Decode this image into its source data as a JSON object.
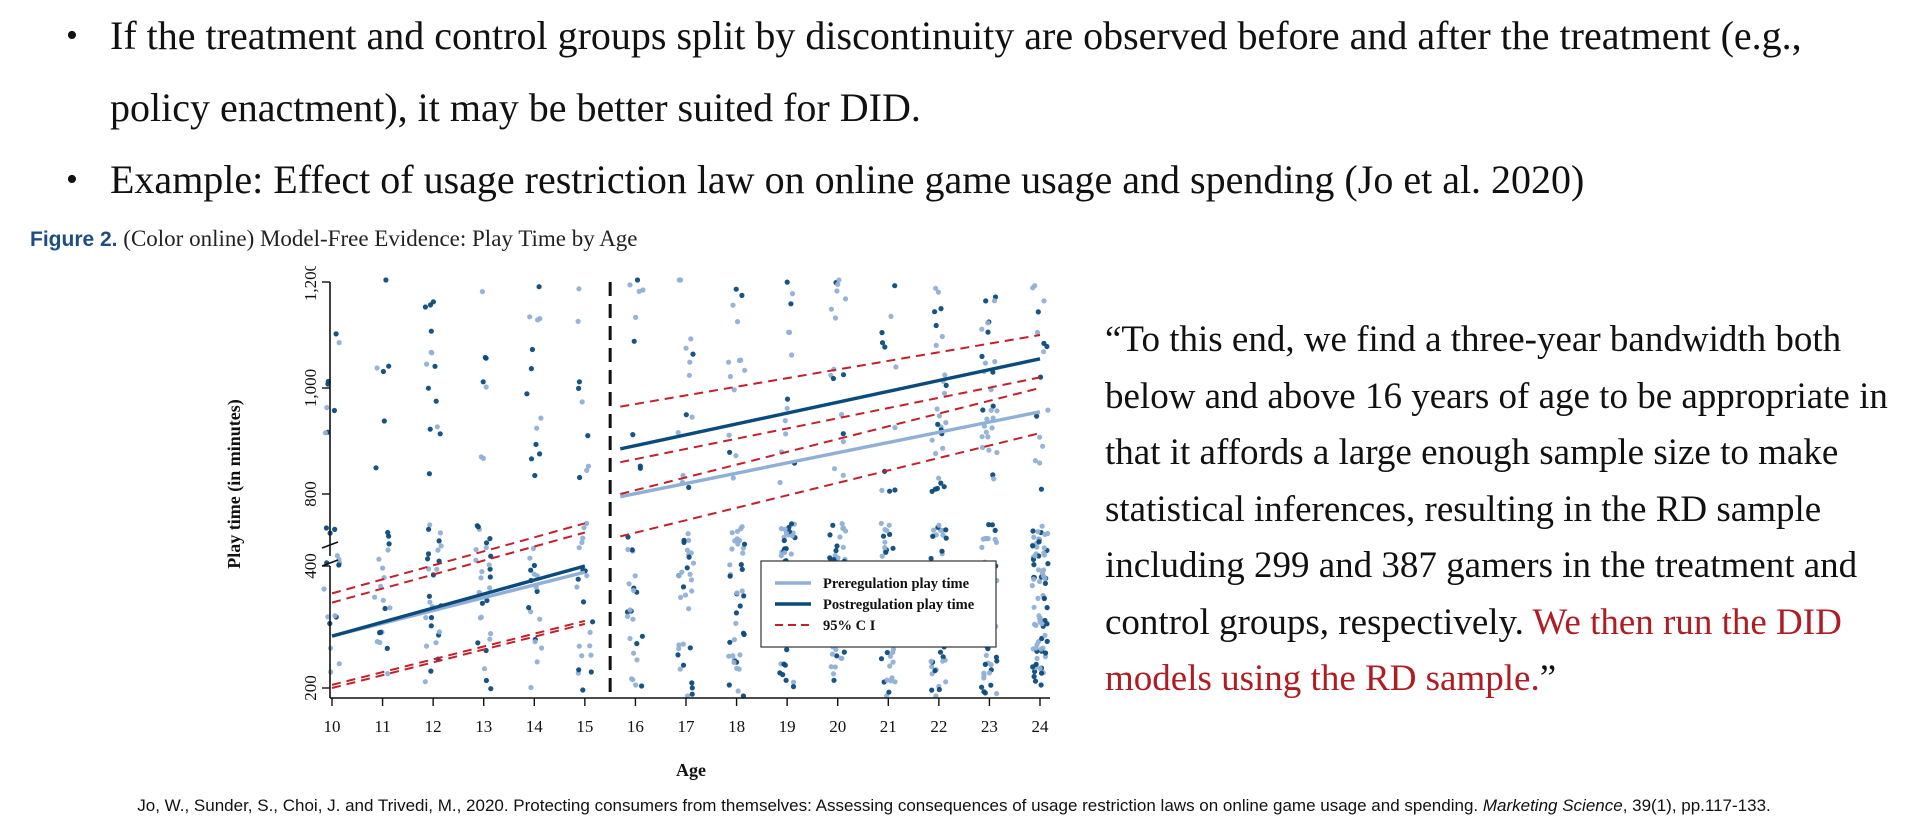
{
  "bullets": [
    "If the treatment and control groups split by discontinuity are observed before and after the treatment (e.g., policy enactment), it may be better suited for DID.",
    "Example: Effect of usage restriction law on online game usage and spending (Jo et al. 2020)"
  ],
  "figure": {
    "label": "Figure 2.",
    "caption": "(Color online) Model-Free Evidence: Play Time by Age"
  },
  "quote": {
    "text": "“To this end, we find a three-year bandwidth both below and above 16 years of age to be appropriate in that it affords a large enough sample size to make statistical inferences, resulting in the RD sample including 299 and 387 gamers in the treatment and control groups, respectively. ",
    "highlight": "We then run the DID models using the RD sample.",
    "closing": "”"
  },
  "citation": {
    "authors": "Jo, W., Sunder, S., Choi, J. and Trivedi, M., 2020. Protecting consumers from themselves: Assessing consequences of usage restriction laws on online game usage and spending. ",
    "journal": "Marketing Science",
    "details": ", 39(1), pp.117-133."
  },
  "colors": {
    "pre": "#8fb0d6",
    "post": "#0b4a7c",
    "ci": "#c4202b",
    "highlight": "#b01c23",
    "figure_label": "#1d4d86"
  },
  "chart_data": {
    "type": "scatter",
    "title": "Model-Free Evidence: Play Time by Age",
    "xlabel": "Age",
    "ylabel": "Play time (in minutes)",
    "categories": [
      10,
      11,
      12,
      13,
      14,
      15,
      16,
      17,
      18,
      19,
      20,
      21,
      22,
      23,
      24
    ],
    "y_ticks": [
      200,
      400,
      800,
      1000,
      1200
    ],
    "y_tick_labels": [
      "200",
      "400",
      "800",
      "1,000",
      "1,200"
    ],
    "axis_break": "between 400 and 800",
    "cutoff_age": 15.5,
    "legend": {
      "position": "bottom-right",
      "entries": [
        "Preregulation play time",
        "Postregulation play time",
        "95% C I"
      ]
    },
    "series": [
      {
        "name": "Preregulation play time",
        "style": "solid",
        "segments": [
          {
            "x": [
              10,
              15
            ],
            "y": [
              285,
              390
            ]
          },
          {
            "x": [
              15.7,
              24
            ],
            "y": [
              795,
              955
            ]
          }
        ]
      },
      {
        "name": "Postregulation play time",
        "style": "solid",
        "segments": [
          {
            "x": [
              10,
              15
            ],
            "y": [
              285,
              400
            ]
          },
          {
            "x": [
              15.7,
              24
            ],
            "y": [
              885,
              1055
            ]
          }
        ]
      },
      {
        "name": "95% C I",
        "style": "dashed",
        "segments": [
          {
            "x": [
              10,
              15
            ],
            "y": [
              355,
              470
            ]
          },
          {
            "x": [
              10,
              15
            ],
            "y": [
              340,
              455
            ]
          },
          {
            "x": [
              10,
              15
            ],
            "y": [
              205,
              310
            ]
          },
          {
            "x": [
              10,
              15
            ],
            "y": [
              200,
              305
            ]
          },
          {
            "x": [
              15.7,
              24
            ],
            "y": [
              965,
              1100
            ]
          },
          {
            "x": [
              15.7,
              24
            ],
            "y": [
              860,
              1020
            ]
          },
          {
            "x": [
              15.7,
              24
            ],
            "y": [
              800,
              1000
            ]
          },
          {
            "x": [
              15.7,
              24
            ],
            "y": [
              720,
              915
            ]
          }
        ]
      }
    ],
    "scatter_summary": {
      "description": "Per-age jittered points (preregulation light blue, postregulation dark blue) concentrated around 200-450 minutes, with sparser points between 800 and 1,200.",
      "points_per_age": [
        24,
        26,
        40,
        34,
        30,
        30,
        32,
        44,
        54,
        60,
        66,
        70,
        78,
        84,
        96
      ]
    }
  }
}
